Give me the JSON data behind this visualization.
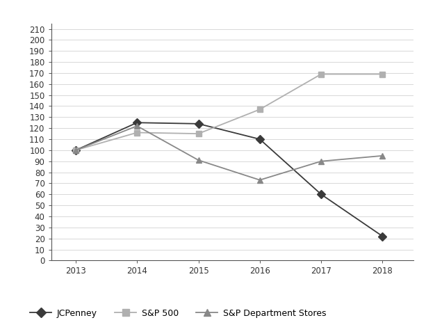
{
  "years": [
    2013,
    2014,
    2015,
    2016,
    2017,
    2018
  ],
  "jcpenney": [
    100,
    125,
    124,
    110,
    60,
    22
  ],
  "sp500": [
    100,
    116,
    115,
    137,
    169,
    169
  ],
  "sp_dept": [
    100,
    122,
    91,
    73,
    90,
    95
  ],
  "jcpenney_color": "#3a3a3a",
  "sp500_color": "#b0b0b0",
  "sp_dept_color": "#888888",
  "background_color": "#ffffff",
  "ylim": [
    0,
    215
  ],
  "yticks": [
    0,
    10,
    20,
    30,
    40,
    50,
    60,
    70,
    80,
    90,
    100,
    110,
    120,
    130,
    140,
    150,
    160,
    170,
    180,
    190,
    200,
    210
  ],
  "grid_color": "#d8d8d8",
  "legend_labels": [
    "JCPenney",
    "S&P 500",
    "S&P Department Stores"
  ],
  "figsize": [
    6.13,
    4.8
  ],
  "dpi": 100
}
